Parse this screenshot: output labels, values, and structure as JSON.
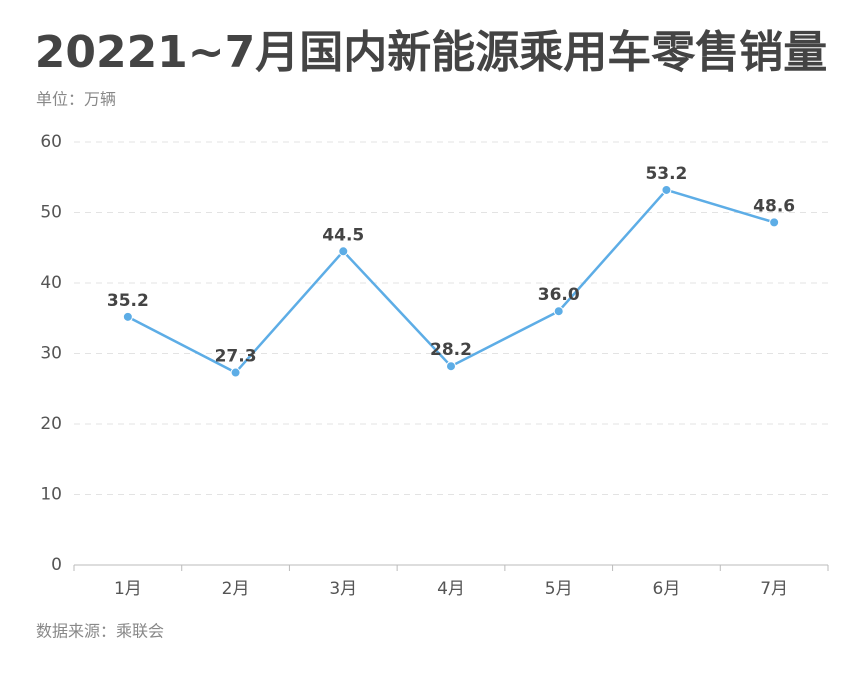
{
  "chart_data": {
    "type": "line",
    "title": "20221~7月国内新能源乘用车零售销量",
    "subtitle": "单位：万辆",
    "source": "数据来源：乘联会",
    "categories": [
      "1月",
      "2月",
      "3月",
      "4月",
      "5月",
      "6月",
      "7月"
    ],
    "values": [
      35.2,
      27.3,
      44.5,
      28.2,
      36.0,
      53.2,
      48.6
    ],
    "value_labels": [
      "35.2",
      "27.3",
      "44.5",
      "28.2",
      "36.0",
      "53.2",
      "48.6"
    ],
    "color": "#5dade6",
    "ylim": [
      0,
      60
    ],
    "yticks": [
      0,
      10,
      20,
      30,
      40,
      50,
      60
    ],
    "grid": true
  }
}
